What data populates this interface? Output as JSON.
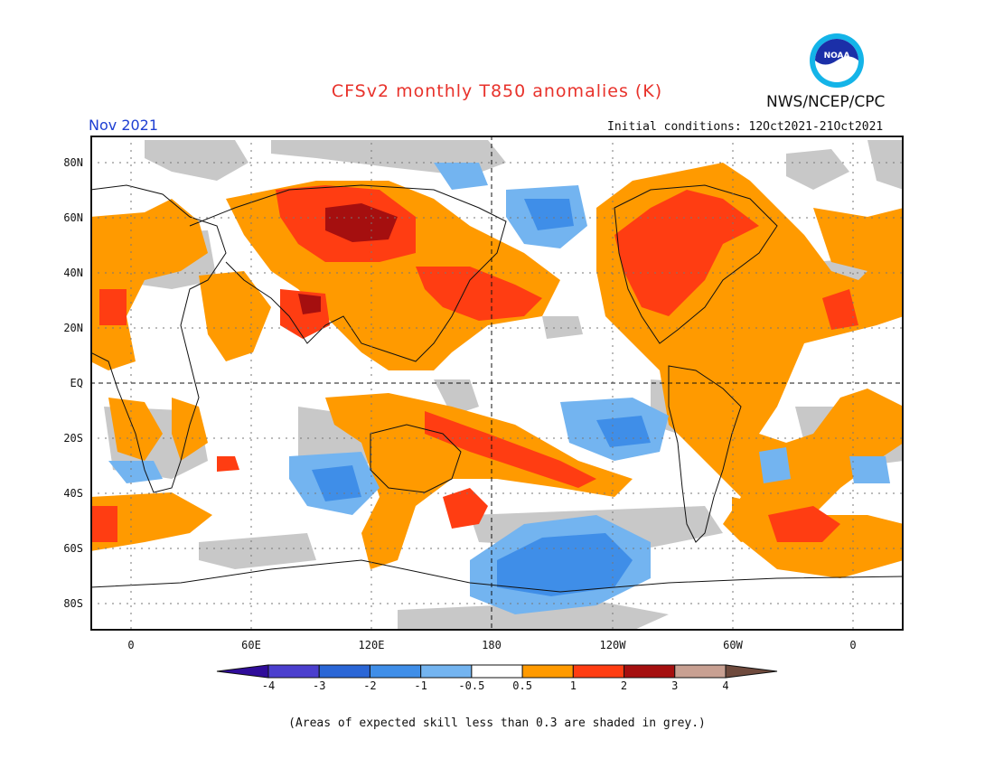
{
  "header": {
    "title": "CFSv2 monthly T850 anomalies (K)",
    "agency": "NWS/NCEP/CPC",
    "logo_text": "NOAA",
    "month": "Nov 2021",
    "initial_conditions": "Initial conditions: 12Oct2021-21Oct2021"
  },
  "map": {
    "projection": "equirectangular",
    "lat_labels": [
      "80N",
      "60N",
      "40N",
      "20N",
      "EQ",
      "20S",
      "40S",
      "60S",
      "80S"
    ],
    "lon_labels": [
      "0",
      "60E",
      "120E",
      "180",
      "120W",
      "60W",
      "0"
    ],
    "reference_lines": [
      "equator",
      "dateline"
    ],
    "grid": "dotted"
  },
  "legend": {
    "labels": [
      "-4",
      "-3",
      "-2",
      "-1",
      "-0.5",
      "0.5",
      "1",
      "2",
      "3",
      "4"
    ],
    "colors": [
      "#2f0c9a",
      "#4b3fce",
      "#2a66d6",
      "#3f8ee8",
      "#73b4f0",
      "#ffffff",
      "#ff9a00",
      "#ff3d12",
      "#a50f0f",
      "#c8a092",
      "#6f4a3d"
    ]
  },
  "colors": {
    "low_skill_grey": "#c8c8c8",
    "title": "#e8322b",
    "month": "#1e3fd2"
  },
  "footnote": "(Areas of expected skill less than 0.3 are shaded in grey.)"
}
